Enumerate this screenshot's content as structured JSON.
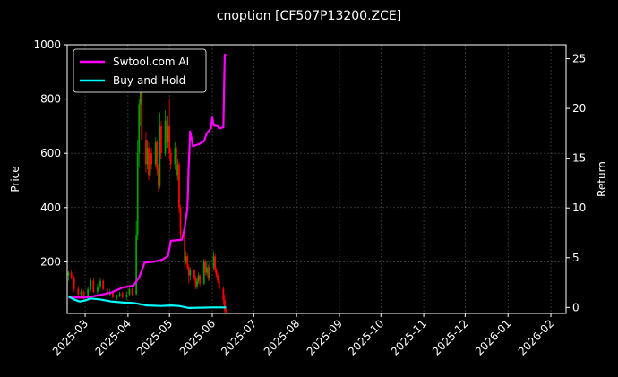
{
  "chart_data": {
    "type": "line",
    "title": "cnoption [CF507P13200.ZCE]",
    "ylabel_left": "Price",
    "ylabel_right": "Return",
    "xlabel": "",
    "grid": true,
    "legend_position": "top-left",
    "x_range": [
      "2025-02-16",
      "2026-02-12"
    ],
    "ylim_left": [
      10,
      1000
    ],
    "ylim_right": [
      -0.6,
      26.4
    ],
    "x_ticks": [
      "2025-03",
      "2025-04",
      "2025-05",
      "2025-06",
      "2025-07",
      "2025-08",
      "2025-09",
      "2025-10",
      "2025-11",
      "2025-12",
      "2026-01",
      "2026-02"
    ],
    "y_ticks_left": [
      "200",
      "400",
      "600",
      "800",
      "1000"
    ],
    "y_ticks_right": [
      "0",
      "5",
      "10",
      "15",
      "20",
      "25"
    ],
    "colors": {
      "up": "#00a000",
      "down": "#ff0000",
      "strategy": "#ff00ff",
      "benchmark": "#00ffff",
      "grid": "#555555",
      "axes": "#ffffff",
      "background": "#000000"
    },
    "series": [
      {
        "name": "Swtool.com AI",
        "axis": "right",
        "points": [
          [
            "2025-02-17",
            1.0
          ],
          [
            "2025-03-01",
            1.0
          ],
          [
            "2025-03-10",
            1.2
          ],
          [
            "2025-03-20",
            1.5
          ],
          [
            "2025-03-28",
            2.0
          ],
          [
            "2025-04-05",
            2.2
          ],
          [
            "2025-04-09",
            3.0
          ],
          [
            "2025-04-13",
            4.5
          ],
          [
            "2025-04-20",
            4.6
          ],
          [
            "2025-04-26",
            4.8
          ],
          [
            "2025-04-30",
            5.2
          ],
          [
            "2025-05-02",
            6.7
          ],
          [
            "2025-05-10",
            6.8
          ],
          [
            "2025-05-12",
            8.0
          ],
          [
            "2025-05-14",
            10.0
          ],
          [
            "2025-05-15",
            14.5
          ],
          [
            "2025-05-16",
            17.7
          ],
          [
            "2025-05-18",
            16.2
          ],
          [
            "2025-05-22",
            16.4
          ],
          [
            "2025-05-26",
            16.7
          ],
          [
            "2025-05-28",
            17.5
          ],
          [
            "2025-05-31",
            18.0
          ],
          [
            "2025-06-01",
            19.1
          ],
          [
            "2025-06-02",
            18.3
          ],
          [
            "2025-06-05",
            18.2
          ],
          [
            "2025-06-06",
            18.0
          ],
          [
            "2025-06-09",
            18.1
          ],
          [
            "2025-06-10",
            25.4
          ],
          [
            "2025-06-11",
            25.4
          ]
        ]
      },
      {
        "name": "Buy-and-Hold",
        "axis": "right",
        "points": [
          [
            "2025-02-17",
            1.1
          ],
          [
            "2025-02-21",
            0.8
          ],
          [
            "2025-02-25",
            0.6
          ],
          [
            "2025-03-01",
            0.7
          ],
          [
            "2025-03-05",
            0.9
          ],
          [
            "2025-03-12",
            0.8
          ],
          [
            "2025-03-20",
            0.6
          ],
          [
            "2025-03-28",
            0.5
          ],
          [
            "2025-04-05",
            0.45
          ],
          [
            "2025-04-15",
            0.2
          ],
          [
            "2025-04-25",
            0.15
          ],
          [
            "2025-05-02",
            0.2
          ],
          [
            "2025-05-08",
            0.15
          ],
          [
            "2025-05-15",
            -0.05
          ],
          [
            "2025-06-01",
            0.0
          ],
          [
            "2025-06-11",
            0.0
          ]
        ]
      }
    ],
    "candles": [
      [
        "2025-02-17",
        150,
        160,
        130,
        165
      ],
      [
        "2025-02-19",
        160,
        140,
        135,
        170
      ],
      [
        "2025-02-21",
        140,
        100,
        90,
        150
      ],
      [
        "2025-02-24",
        100,
        80,
        70,
        110
      ],
      [
        "2025-02-26",
        80,
        90,
        75,
        100
      ],
      [
        "2025-02-28",
        90,
        70,
        60,
        95
      ],
      [
        "2025-03-03",
        70,
        100,
        65,
        110
      ],
      [
        "2025-03-05",
        100,
        130,
        90,
        140
      ],
      [
        "2025-03-07",
        130,
        90,
        85,
        140
      ],
      [
        "2025-03-10",
        90,
        110,
        80,
        120
      ],
      [
        "2025-03-12",
        110,
        130,
        100,
        140
      ],
      [
        "2025-03-14",
        130,
        100,
        95,
        135
      ],
      [
        "2025-03-17",
        100,
        80,
        70,
        110
      ],
      [
        "2025-03-19",
        80,
        90,
        75,
        100
      ],
      [
        "2025-03-21",
        90,
        70,
        65,
        95
      ],
      [
        "2025-03-24",
        70,
        75,
        60,
        80
      ],
      [
        "2025-03-26",
        75,
        85,
        70,
        90
      ],
      [
        "2025-03-28",
        85,
        70,
        65,
        90
      ],
      [
        "2025-03-31",
        70,
        80,
        60,
        90
      ],
      [
        "2025-04-02",
        80,
        100,
        75,
        110
      ],
      [
        "2025-04-04",
        100,
        80,
        75,
        105
      ],
      [
        "2025-04-07",
        80,
        300,
        80,
        350
      ],
      [
        "2025-04-08",
        300,
        600,
        280,
        650
      ],
      [
        "2025-04-09",
        600,
        780,
        550,
        800
      ],
      [
        "2025-04-10",
        780,
        850,
        700,
        880
      ],
      [
        "2025-04-11",
        850,
        650,
        600,
        870
      ],
      [
        "2025-04-14",
        650,
        560,
        530,
        680
      ],
      [
        "2025-04-15",
        560,
        620,
        540,
        650
      ],
      [
        "2025-04-16",
        620,
        520,
        500,
        640
      ],
      [
        "2025-04-17",
        520,
        600,
        510,
        620
      ],
      [
        "2025-04-18",
        600,
        560,
        540,
        620
      ],
      [
        "2025-04-21",
        560,
        640,
        550,
        660
      ],
      [
        "2025-04-22",
        640,
        540,
        520,
        650
      ],
      [
        "2025-04-23",
        540,
        480,
        460,
        560
      ],
      [
        "2025-04-24",
        480,
        700,
        470,
        750
      ],
      [
        "2025-04-25",
        700,
        600,
        580,
        720
      ],
      [
        "2025-04-28",
        600,
        720,
        590,
        760
      ],
      [
        "2025-04-29",
        720,
        640,
        620,
        740
      ],
      [
        "2025-04-30",
        640,
        700,
        620,
        740
      ],
      [
        "2025-05-01",
        700,
        600,
        580,
        800
      ],
      [
        "2025-05-02",
        600,
        560,
        540,
        620
      ],
      [
        "2025-05-05",
        560,
        620,
        540,
        640
      ],
      [
        "2025-05-06",
        620,
        520,
        500,
        630
      ],
      [
        "2025-05-07",
        520,
        560,
        500,
        580
      ],
      [
        "2025-05-08",
        560,
        400,
        380,
        570
      ],
      [
        "2025-05-09",
        400,
        300,
        280,
        410
      ],
      [
        "2025-05-12",
        300,
        200,
        180,
        320
      ],
      [
        "2025-05-13",
        200,
        220,
        190,
        240
      ],
      [
        "2025-05-14",
        220,
        180,
        170,
        230
      ],
      [
        "2025-05-15",
        180,
        150,
        120,
        190
      ],
      [
        "2025-05-16",
        150,
        170,
        130,
        180
      ],
      [
        "2025-05-19",
        170,
        140,
        130,
        175
      ],
      [
        "2025-05-20",
        140,
        110,
        100,
        150
      ],
      [
        "2025-05-21",
        110,
        130,
        100,
        140
      ],
      [
        "2025-05-22",
        130,
        150,
        120,
        160
      ],
      [
        "2025-05-23",
        150,
        120,
        110,
        155
      ],
      [
        "2025-05-26",
        120,
        200,
        115,
        210
      ],
      [
        "2025-05-27",
        200,
        160,
        150,
        210
      ],
      [
        "2025-05-28",
        160,
        180,
        150,
        200
      ],
      [
        "2025-05-29",
        180,
        140,
        130,
        190
      ],
      [
        "2025-05-30",
        140,
        180,
        130,
        200
      ],
      [
        "2025-06-02",
        180,
        220,
        170,
        240
      ],
      [
        "2025-06-03",
        220,
        170,
        160,
        230
      ],
      [
        "2025-06-04",
        170,
        150,
        140,
        180
      ],
      [
        "2025-06-05",
        150,
        130,
        120,
        160
      ],
      [
        "2025-06-06",
        130,
        100,
        80,
        140
      ],
      [
        "2025-06-09",
        100,
        60,
        40,
        110
      ],
      [
        "2025-06-10",
        60,
        20,
        10,
        80
      ],
      [
        "2025-06-11",
        20,
        15,
        10,
        30
      ]
    ]
  },
  "legend": {
    "strategy_label": "Swtool.com AI",
    "benchmark_label": "Buy-and-Hold"
  }
}
